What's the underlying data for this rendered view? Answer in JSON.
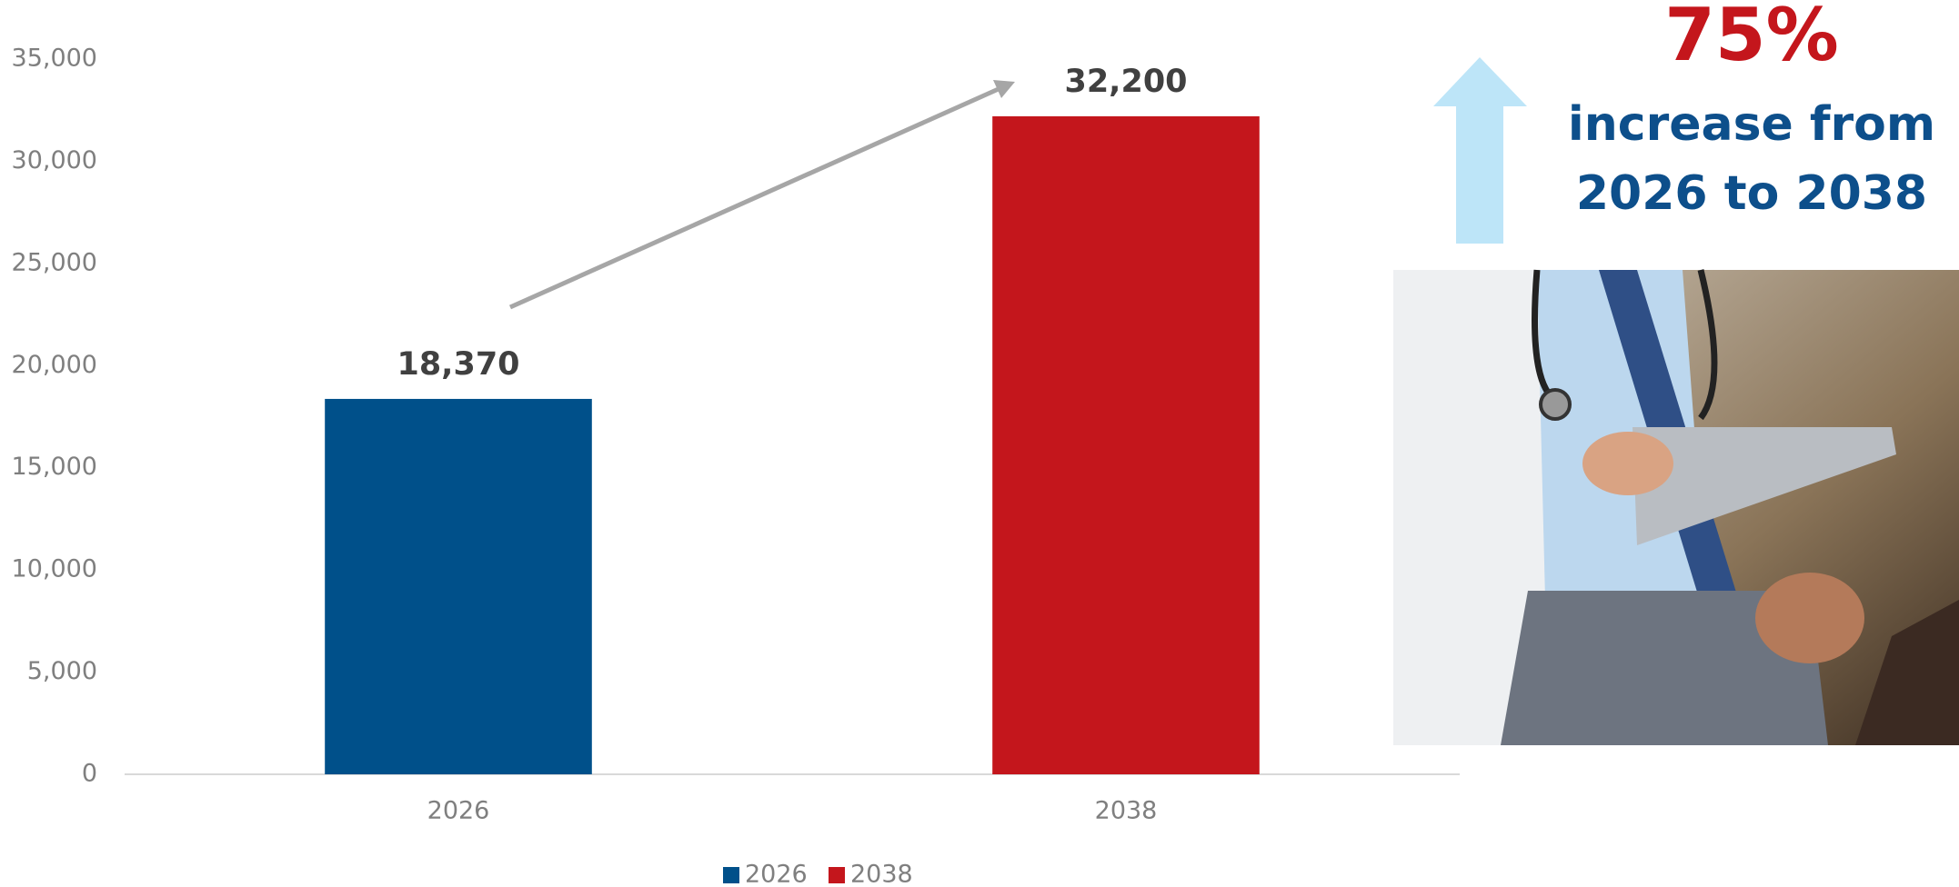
{
  "chart_data": {
    "type": "bar",
    "categories": [
      "2026",
      "2038"
    ],
    "series": [
      {
        "name": "2026",
        "color": "#00508a",
        "values": [
          18370,
          null
        ],
        "value_labels": [
          "18,370",
          null
        ]
      },
      {
        "name": "2038",
        "color": "#c4161c",
        "values": [
          null,
          32200
        ],
        "value_labels": [
          null,
          "32,200"
        ]
      }
    ],
    "ylim": [
      0,
      35000
    ],
    "yticks": [
      0,
      {
        "value": 5000,
        "label": "5,000"
      },
      {
        "value": 10000,
        "label": "10,000"
      },
      {
        "value": 15000,
        "label": "15,000"
      },
      {
        "value": 20000,
        "label": "20,000"
      },
      {
        "value": 25000,
        "label": "25,000"
      },
      {
        "value": 30000,
        "label": "30,000"
      },
      {
        "value": 35000,
        "label": "35,000"
      }
    ],
    "grid": false,
    "legend": "bottom",
    "annotation": {
      "headline": "75%",
      "text_lines": [
        "increase from",
        "2026 to 2038"
      ]
    }
  }
}
